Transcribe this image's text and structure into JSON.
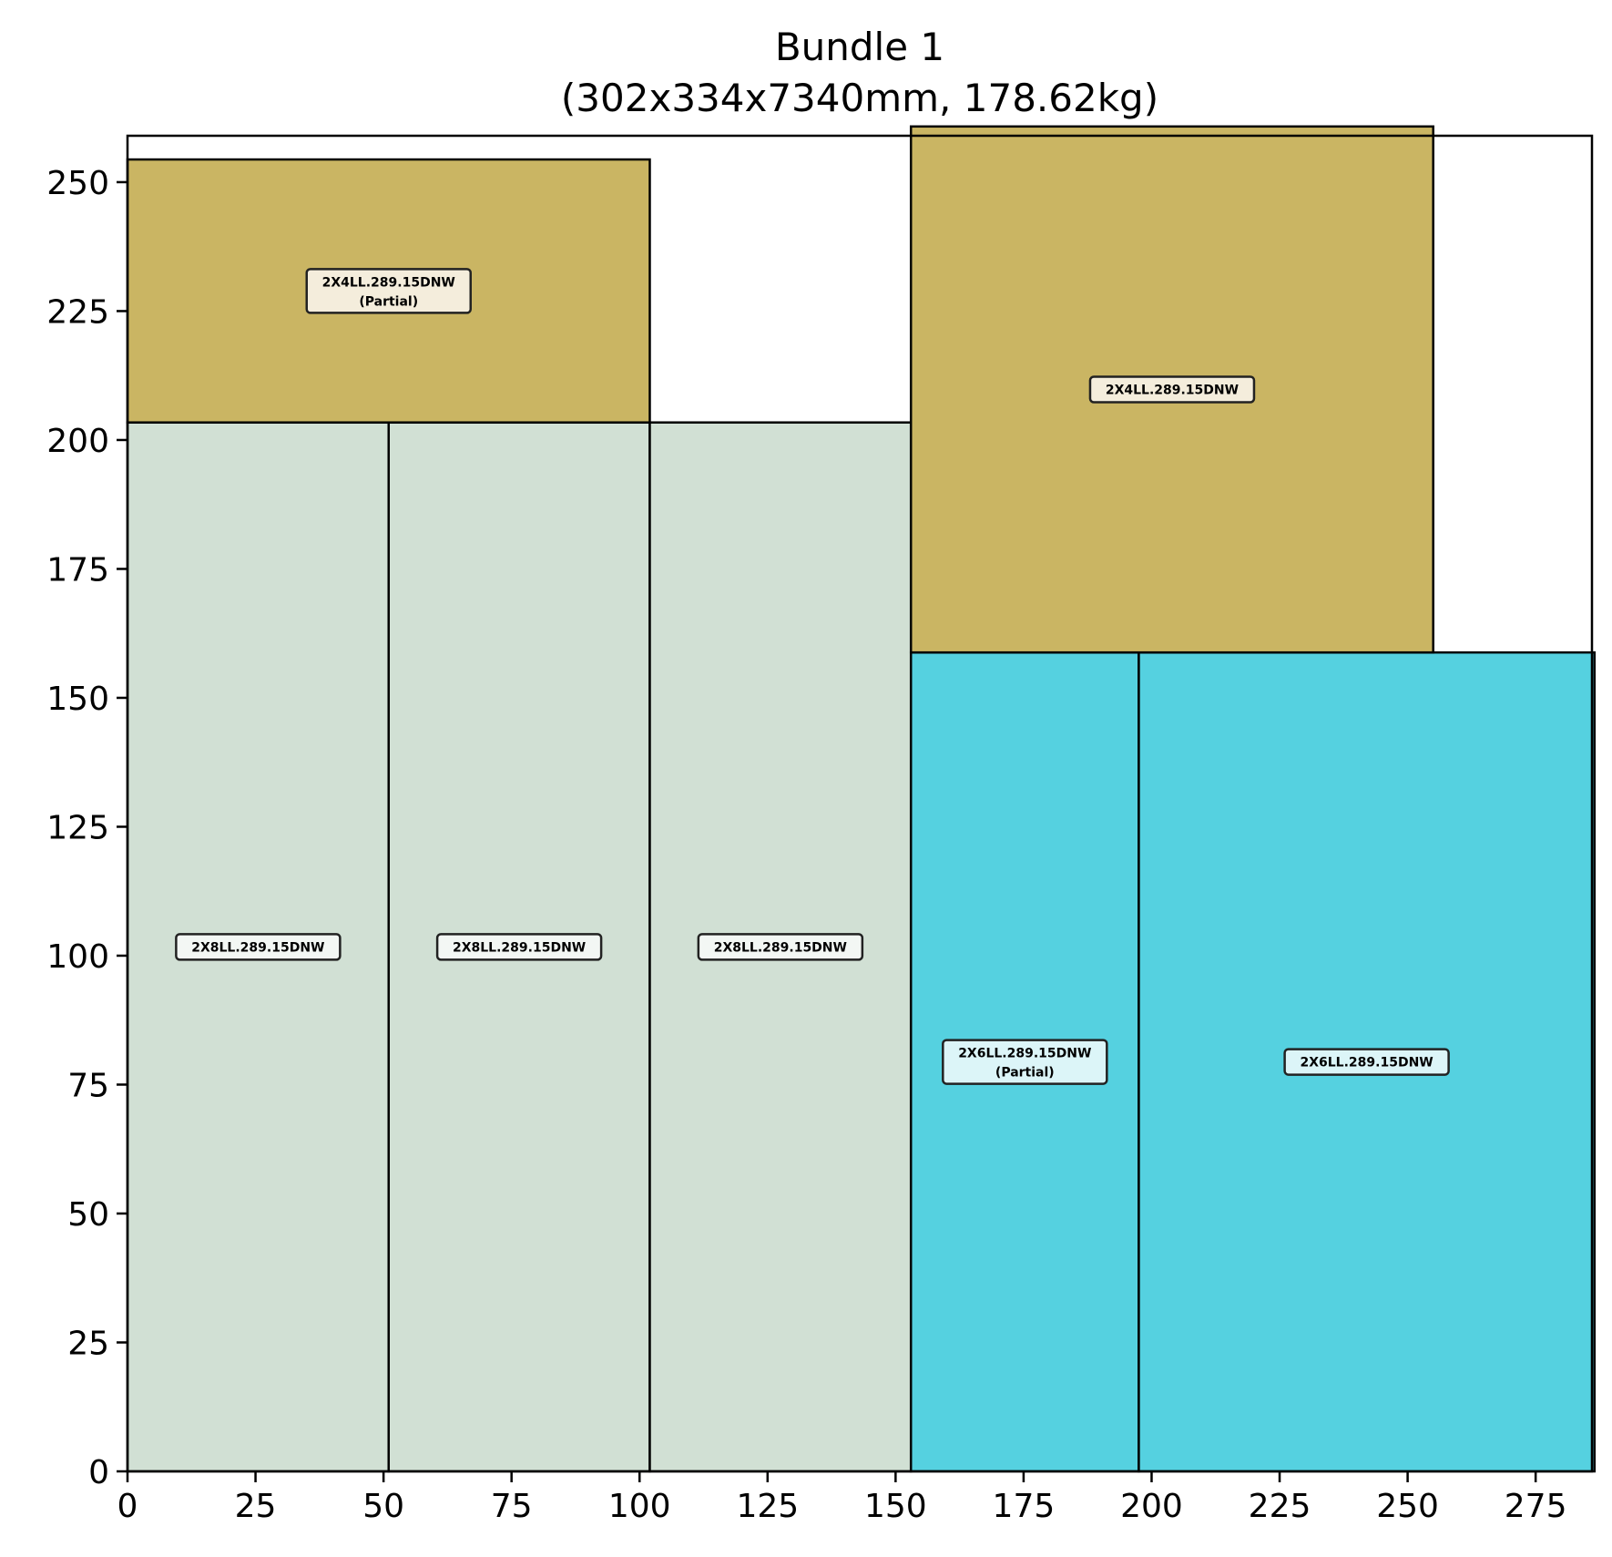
{
  "chart_data": {
    "type": "packing-diagram",
    "title_line1": "Bundle 1",
    "title_line2": "(302x334x7340mm, 178.62kg)",
    "xlim": [
      0,
      286
    ],
    "ylim": [
      0,
      259
    ],
    "xticks": [
      0,
      25,
      50,
      75,
      100,
      125,
      150,
      175,
      200,
      225,
      250,
      275
    ],
    "yticks": [
      0,
      25,
      50,
      75,
      100,
      125,
      150,
      175,
      200,
      225,
      250
    ],
    "grid": false,
    "rectangles": [
      {
        "x": 0,
        "y": 0,
        "w": 51,
        "h": 203.4,
        "label": "2X8LL.289.15DNW",
        "sublabel": "",
        "color": "#d1e0d4",
        "label_bg": "#f3f7f4"
      },
      {
        "x": 51,
        "y": 0,
        "w": 51,
        "h": 203.4,
        "label": "2X8LL.289.15DNW",
        "sublabel": "",
        "color": "#d1e0d4",
        "label_bg": "#f3f7f4"
      },
      {
        "x": 102,
        "y": 0,
        "w": 51,
        "h": 203.4,
        "label": "2X8LL.289.15DNW",
        "sublabel": "",
        "color": "#d1e0d4",
        "label_bg": "#f3f7f4"
      },
      {
        "x": 0,
        "y": 203.4,
        "w": 102,
        "h": 51,
        "label": "2X4LL.289.15DNW",
        "sublabel": "(Partial)",
        "color": "#cab563",
        "label_bg": "#f4eddc"
      },
      {
        "x": 153,
        "y": 0,
        "w": 44.5,
        "h": 158.8,
        "label": "2X6LL.289.15DNW",
        "sublabel": "(Partial)",
        "color": "#55d1e0",
        "label_bg": "#dcf5f8"
      },
      {
        "x": 197.5,
        "y": 0,
        "w": 89,
        "h": 158.8,
        "label": "2X6LL.289.15DNW",
        "sublabel": "",
        "color": "#55d1e0",
        "label_bg": "#dcf5f8"
      },
      {
        "x": 153,
        "y": 158.8,
        "w": 102,
        "h": 102,
        "label": "2X4LL.289.15DNW",
        "sublabel": "",
        "color": "#cab563",
        "label_bg": "#f4eddc"
      }
    ]
  }
}
